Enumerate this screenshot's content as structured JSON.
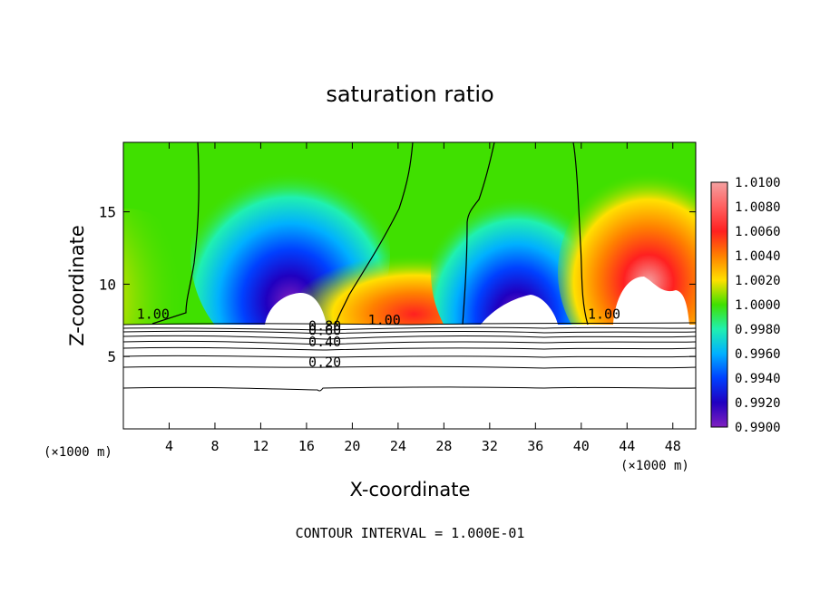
{
  "chart_data": {
    "type": "heatmap",
    "title": "saturation ratio",
    "xlabel": "X-coordinate",
    "ylabel": "Z-coordinate",
    "x_unit_left": "(×1000 m)",
    "x_unit_right": "(×1000 m)",
    "xlim": [
      0,
      50
    ],
    "ylim": [
      0,
      19.8
    ],
    "x_ticks": [
      "4",
      "8",
      "12",
      "16",
      "20",
      "24",
      "28",
      "32",
      "36",
      "40",
      "44",
      "48"
    ],
    "x_tick_values": [
      4,
      8,
      12,
      16,
      20,
      24,
      28,
      32,
      36,
      40,
      44,
      48
    ],
    "y_ticks": [
      "5",
      "10",
      "15"
    ],
    "y_tick_values": [
      5,
      10,
      15
    ],
    "footer": "CONTOUR INTERVAL = 1.000E-01",
    "colorbar": {
      "min": 0.99,
      "max": 1.01,
      "labels": [
        "1.0100",
        "1.0080",
        "1.0060",
        "1.0040",
        "1.0020",
        "1.0000",
        "0.9980",
        "0.9960",
        "0.9940",
        "0.9920",
        "0.9900"
      ],
      "label_values": [
        1.01,
        1.008,
        1.006,
        1.004,
        1.002,
        1.0,
        0.998,
        0.996,
        0.994,
        0.992,
        0.99
      ],
      "colors": [
        "#f4a0a0",
        "#ff3030",
        "#ff8000",
        "#ffe000",
        "#40e000",
        "#20f0b0",
        "#00b0ff",
        "#0030ff",
        "#8020c0"
      ]
    },
    "contour_labels": [
      {
        "text": "1.00",
        "x": 2.6,
        "z": 7.6
      },
      {
        "text": "1.00",
        "x": 22.8,
        "z": 7.2
      },
      {
        "text": "1.00",
        "x": 42.0,
        "z": 7.6
      },
      {
        "text": "0.80",
        "x": 17.6,
        "z": 6.8
      },
      {
        "text": "0.60",
        "x": 17.6,
        "z": 6.5
      },
      {
        "text": "0.40",
        "x": 17.6,
        "z": 5.7
      },
      {
        "text": "0.20",
        "x": 17.6,
        "z": 4.3
      }
    ],
    "supersat_regions": [
      {
        "x0": 0,
        "x1": 3,
        "center_x": 0.5,
        "center_z": 10,
        "peak": 1.004
      },
      {
        "x0": 18,
        "x1": 30,
        "center_x": 27,
        "center_z": 9.5,
        "peak": 1.006
      },
      {
        "x0": 40,
        "x1": 50,
        "center_x": 45,
        "center_z": 10.5,
        "peak": 1.008
      }
    ],
    "subsat_regions": [
      {
        "x0": 9,
        "x1": 18,
        "center_x": 14,
        "center_z": 10.5,
        "min": 0.99
      },
      {
        "x0": 30,
        "x1": 40,
        "center_x": 35,
        "center_z": 9.5,
        "min": 0.99
      }
    ]
  }
}
